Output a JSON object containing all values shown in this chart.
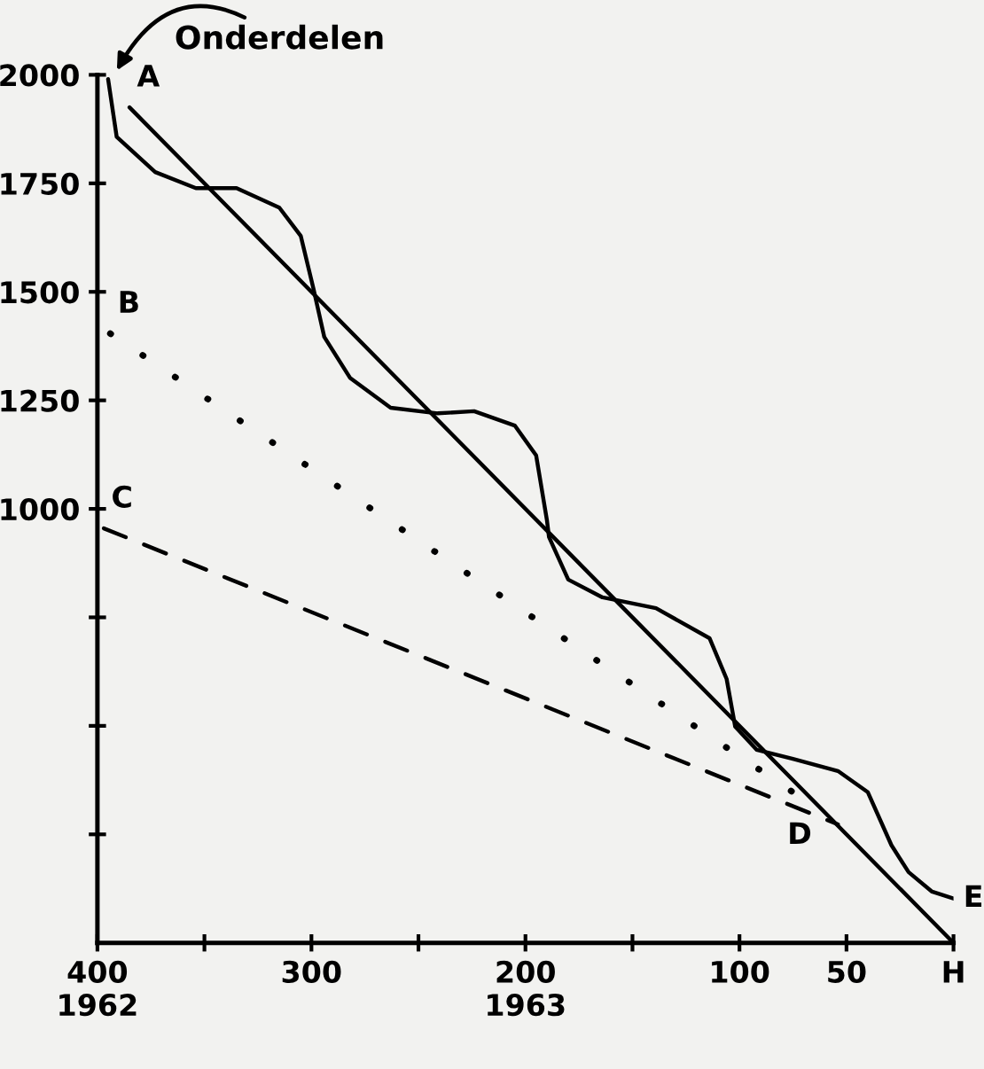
{
  "chart_data": {
    "type": "line",
    "ylabel": "Onderdelen",
    "xlim": [
      400,
      0
    ],
    "ylim": [
      0,
      2000
    ],
    "xticks": [
      {
        "value": 400,
        "label": "400\n1962"
      },
      {
        "value": 350,
        "label": null
      },
      300,
      {
        "value": 250,
        "label": null
      },
      {
        "value": 200,
        "label": "200\n1963"
      },
      {
        "value": 150,
        "label": null
      },
      100,
      50,
      {
        "value": 0,
        "label": "H"
      }
    ],
    "yticks": [
      {
        "value": 250,
        "label": null
      },
      {
        "value": 500,
        "label": null
      },
      {
        "value": 750,
        "label": null
      },
      1000,
      1250,
      1500,
      1750,
      2000
    ],
    "grid": false,
    "legend": false,
    "marker": "none",
    "series": [
      {
        "color": "#000000",
        "line_style": "solid",
        "x": [
          385,
          0
        ],
        "values": [
          1925,
          0
        ]
      },
      {
        "color": "#000000",
        "line_style": "solid",
        "x": [
          395,
          391,
          373,
          354,
          335,
          315,
          305,
          299,
          294,
          282,
          263,
          241,
          224,
          205,
          195,
          190,
          189,
          180,
          164,
          139,
          114,
          106,
          102,
          92,
          75,
          54,
          40,
          29,
          21,
          10,
          0
        ],
        "values": [
          1990,
          1857,
          1776,
          1739,
          1739,
          1694,
          1629,
          1506,
          1396,
          1302,
          1233,
          1220,
          1225,
          1192,
          1123,
          975,
          935,
          837,
          796,
          771,
          702,
          608,
          498,
          445,
          424,
          396,
          347,
          225,
          163,
          118,
          102
        ]
      },
      {
        "color": "#000000",
        "line_style": "dotted",
        "x": [
          394,
          65
        ],
        "values": [
          1404,
          314
        ]
      },
      {
        "color": "#000000",
        "line_style": "dashed",
        "x": [
          397,
          54
        ],
        "values": [
          955,
          273
        ]
      }
    ],
    "annotations": [
      {
        "text": "A",
        "x": 385,
        "y": 1925
      },
      {
        "text": "B",
        "x": 394,
        "y": 1404
      },
      {
        "text": "C",
        "x": 397,
        "y": 955
      },
      {
        "text": "D",
        "x": 65,
        "y": 314
      },
      {
        "text": "E",
        "x": 0,
        "y": 102
      }
    ]
  }
}
